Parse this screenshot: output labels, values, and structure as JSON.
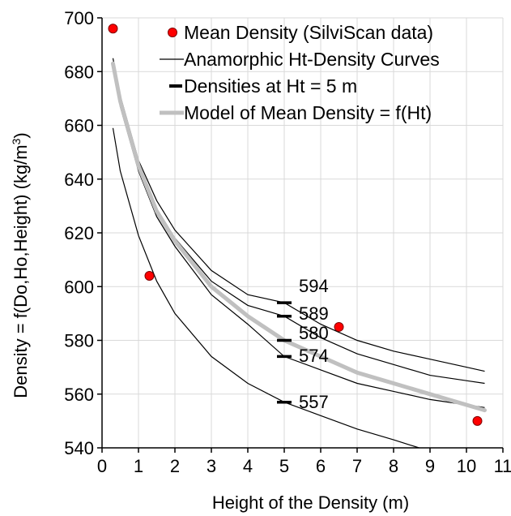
{
  "chart_data": {
    "type": "line",
    "title": "",
    "xlabel": "Height of the Density (m)",
    "ylabel": "Density = f(Do,Ho,Height) (kg/m",
    "ylabel_superscript": "3",
    "ylabel_suffix": ")",
    "xlim": [
      0,
      11
    ],
    "ylim": [
      540,
      700
    ],
    "xticks": [
      "0",
      "1",
      "2",
      "3",
      "4",
      "5",
      "6",
      "7",
      "8",
      "9",
      "10",
      "11"
    ],
    "yticks": [
      "540",
      "560",
      "580",
      "600",
      "620",
      "640",
      "660",
      "680",
      "700"
    ],
    "grid": true,
    "legend_position": "top-right",
    "legend": [
      "Mean Density (SilviScan data)",
      "Anamorphic Ht-Density Curves",
      "Densities at Ht = 5 m",
      "Model of Mean Density = f(Ht)"
    ],
    "series": [
      {
        "name": "Mean Density (SilviScan data)",
        "kind": "scatter",
        "color": "#ff0000",
        "points": [
          [
            0.3,
            696
          ],
          [
            1.3,
            604
          ],
          [
            6.5,
            585
          ],
          [
            10.3,
            550
          ]
        ]
      },
      {
        "name": "Anamorphic Ht-Density Curves",
        "kind": "curves",
        "color": "#000000",
        "curves": [
          {
            "x": [
              0.3,
              0.5,
              1,
              1.5,
              2,
              3,
              4,
              5,
              6,
              7,
              8,
              9,
              10,
              10.5
            ],
            "y": [
              685,
              671,
              647,
              632,
              621,
              606,
              597,
              594,
              586,
              580,
              576,
              573,
              570,
              568.5
            ]
          },
          {
            "x": [
              0.3,
              0.5,
              1,
              1.5,
              2,
              3,
              4,
              5,
              6,
              7,
              8,
              9,
              10,
              10.5
            ],
            "y": [
              683,
              669,
              645,
              629,
              618,
              602,
              593,
              589,
              581,
              575,
              571,
              567,
              565,
              564
            ]
          },
          {
            "x": [
              0.3,
              0.5,
              1,
              1.5,
              2,
              3,
              4,
              5,
              6,
              7,
              8,
              9,
              10,
              10.5
            ],
            "y": [
              681,
              667,
              643,
              626,
              615,
              597,
              586,
              574,
              569,
              564,
              561,
              558,
              556,
              555
            ]
          },
          {
            "x": [
              0.3,
              0.5,
              1,
              1.5,
              2,
              3,
              4,
              5,
              6,
              7,
              8,
              8.7
            ],
            "y": [
              659,
              643,
              619,
              602,
              590,
              574,
              564,
              557,
              552,
              547,
              543,
              540
            ]
          }
        ]
      },
      {
        "name": "Densities at Ht = 5 m",
        "kind": "markers",
        "color": "#000000",
        "x": 5,
        "values": [
          594,
          589,
          580,
          574,
          557
        ]
      },
      {
        "name": "Model of Mean Density = f(Ht)",
        "kind": "line",
        "color": "#c0c0c0",
        "x": [
          0.3,
          0.5,
          1,
          1.5,
          2,
          3,
          4,
          5,
          6,
          7,
          8,
          9,
          10,
          10.5
        ],
        "y": [
          683,
          669,
          645,
          628,
          617,
          600,
          589,
          580,
          574,
          568,
          564,
          560,
          556,
          554
        ]
      }
    ],
    "annotations": [
      {
        "x": 5,
        "y": 594,
        "text": "594"
      },
      {
        "x": 5,
        "y": 589,
        "text": "589"
      },
      {
        "x": 5,
        "y": 580,
        "text": "580"
      },
      {
        "x": 5,
        "y": 574,
        "text": "574"
      },
      {
        "x": 5,
        "y": 557,
        "text": "557"
      }
    ]
  }
}
